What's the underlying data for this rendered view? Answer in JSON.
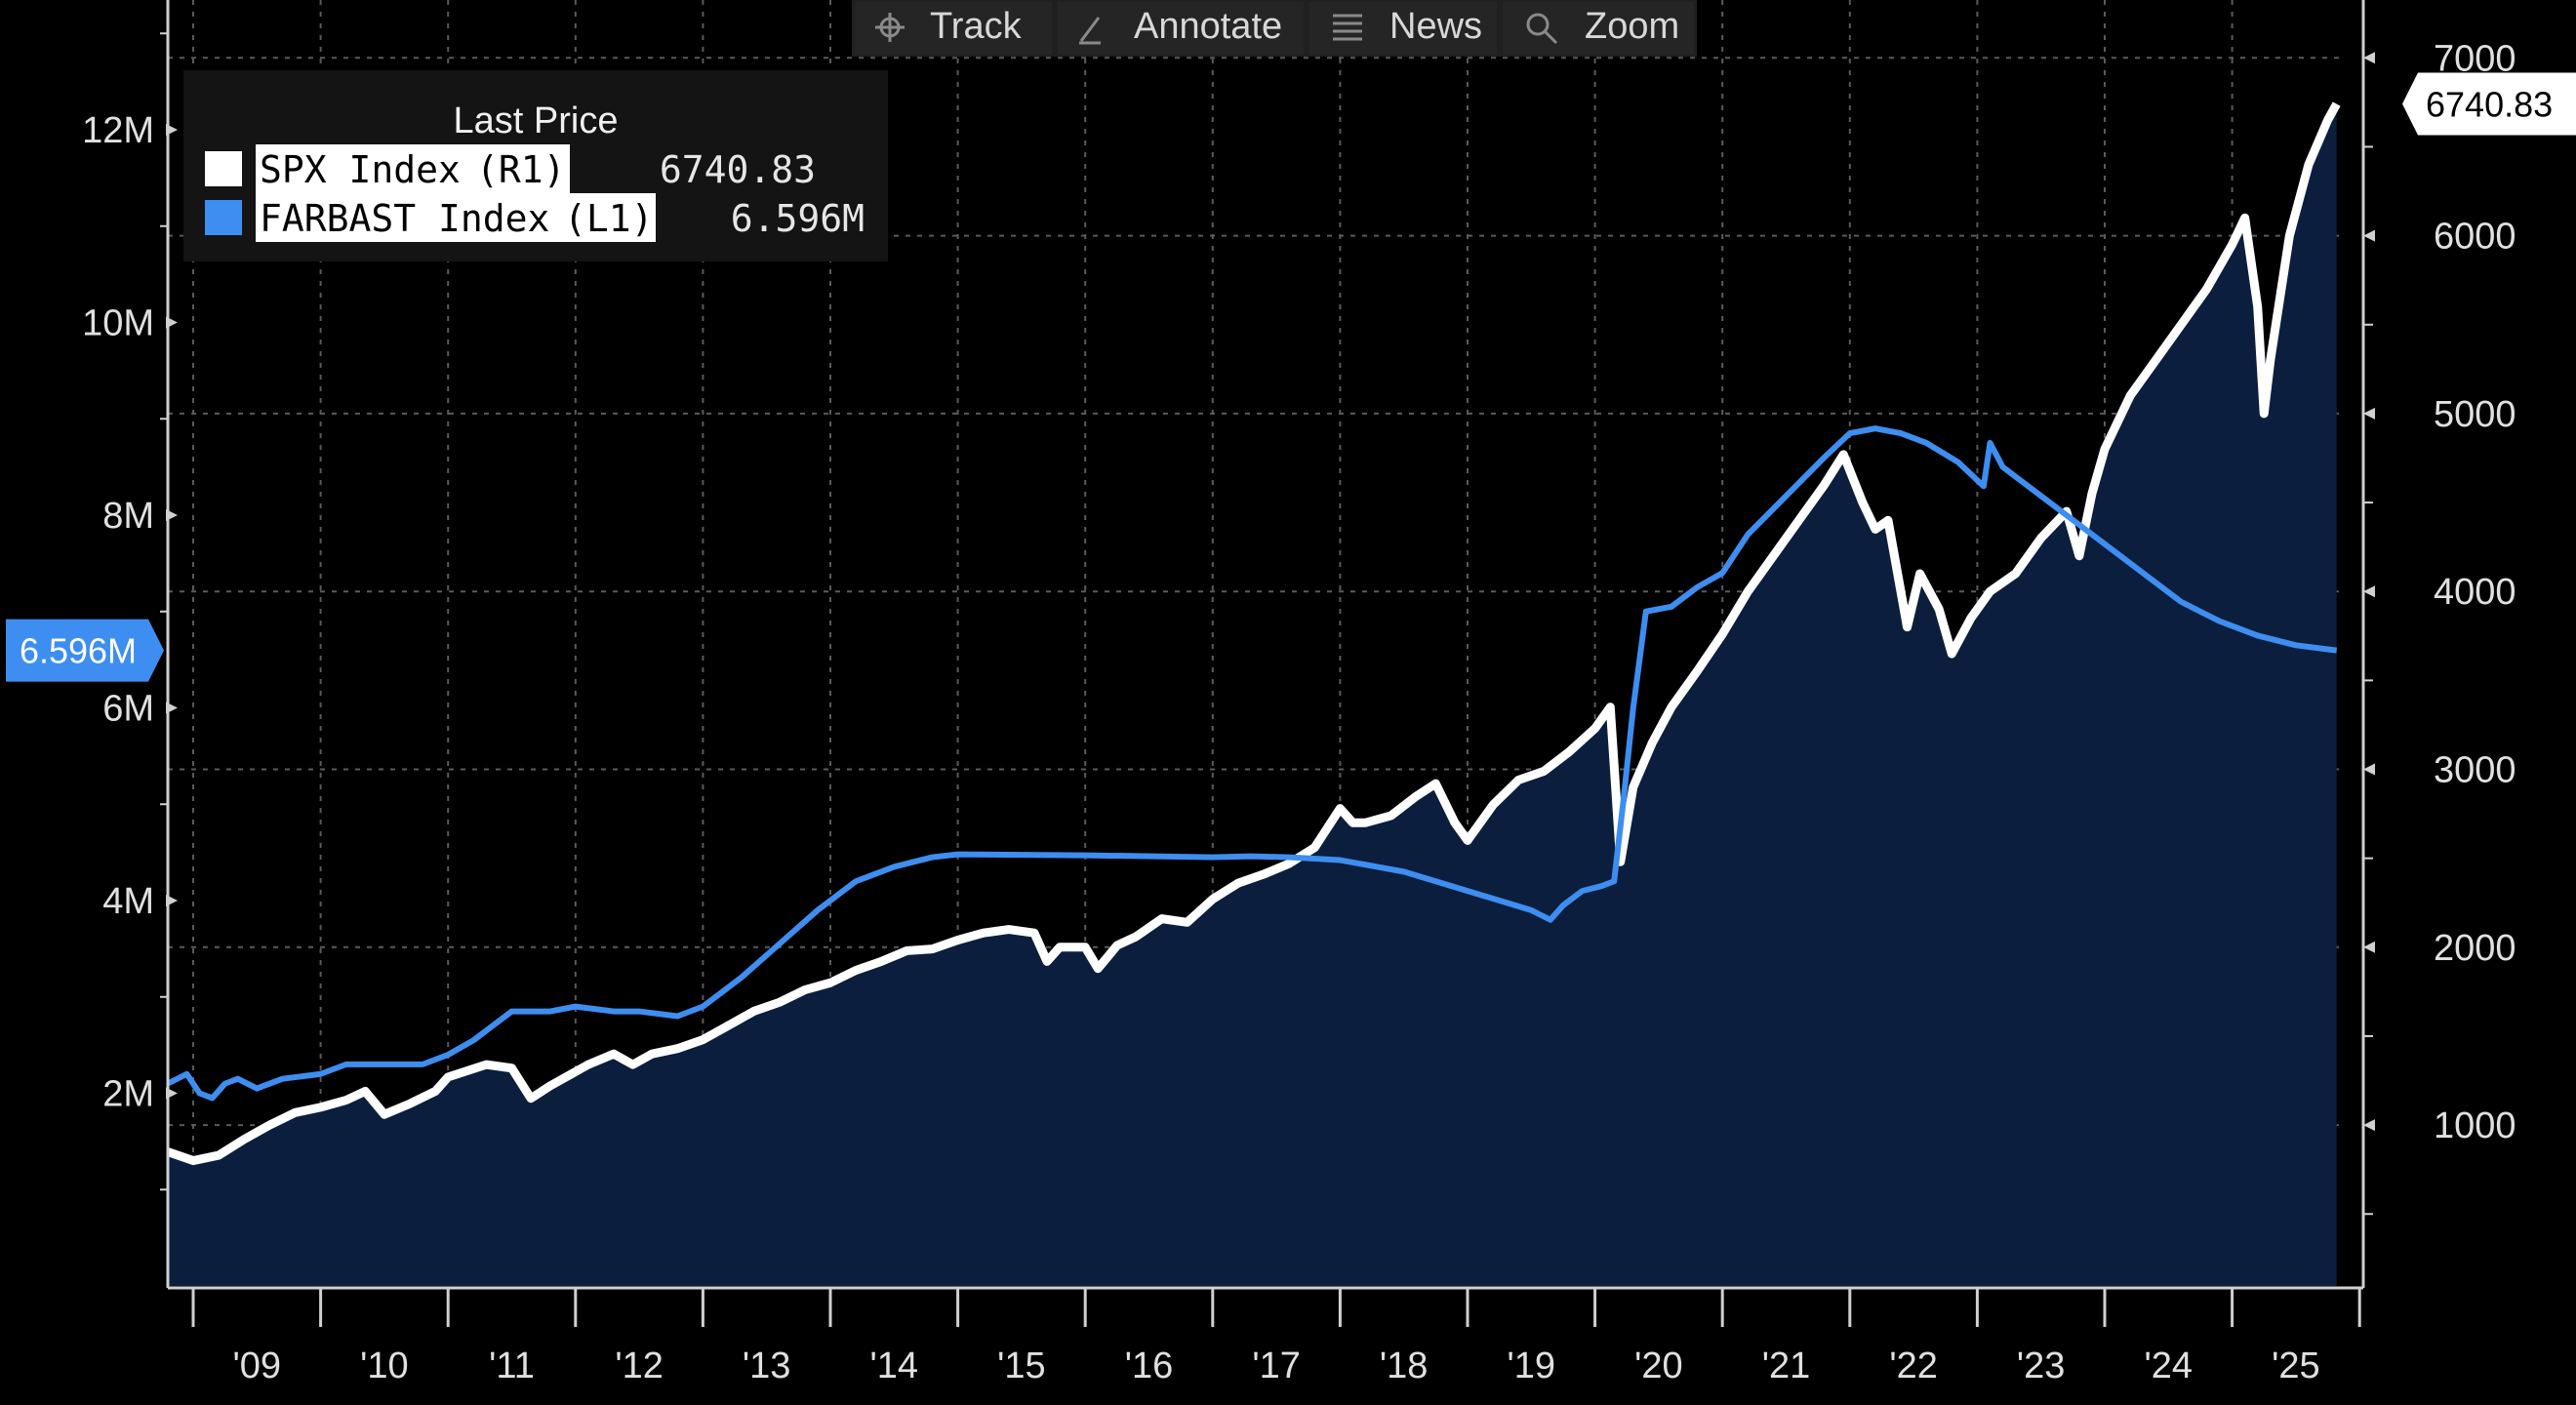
{
  "toolbar": {
    "buttons": [
      {
        "label": "Track",
        "icon": "crosshair-icon"
      },
      {
        "label": "Annotate",
        "icon": "pen-icon"
      },
      {
        "label": "News",
        "icon": "news-icon"
      },
      {
        "label": "Zoom",
        "icon": "magnifier-icon"
      }
    ]
  },
  "legend": {
    "title": "Last Price",
    "items": [
      {
        "name": "SPX Index",
        "axis": "(R1)",
        "value": "6740.83",
        "color": "#ffffff"
      },
      {
        "name": "FARBAST Index",
        "axis": "(L1)",
        "value": "6.596M",
        "color": "#3d8ef0"
      }
    ]
  },
  "chart_data": {
    "type": "line",
    "title": "",
    "x_range": [
      2008.8,
      2025.95
    ],
    "x_tick_labels": [
      "'09",
      "'10",
      "'11",
      "'12",
      "'13",
      "'14",
      "'15",
      "'16",
      "'17",
      "'18",
      "'19",
      "'20",
      "'21",
      "'22",
      "'23",
      "'24",
      "'25"
    ],
    "left_axis": {
      "ylim": [
        0,
        13.2
      ],
      "unit": "M",
      "tick_values": [
        2,
        4,
        6,
        8,
        10,
        12
      ],
      "tick_labels": [
        "2M",
        "4M",
        "6M",
        "8M",
        "10M",
        "12M"
      ],
      "last_value_label": "6.596M",
      "last_value": 6.596
    },
    "right_axis": {
      "ylim": [
        0,
        7000
      ],
      "tick_values": [
        1000,
        2000,
        3000,
        4000,
        5000,
        6000,
        7000
      ],
      "tick_labels": [
        "1000",
        "2000",
        "3000",
        "4000",
        "5000",
        "6000",
        "7000"
      ],
      "last_value_label": "6740.83",
      "last_value": 6740.83
    },
    "grid": true,
    "series": [
      {
        "name": "SPX Index",
        "axis": "right",
        "color": "#ffffff",
        "fill": "#0b1e3d",
        "x": [
          2008.8,
          2009.0,
          2009.2,
          2009.4,
          2009.6,
          2009.8,
          2010.0,
          2010.2,
          2010.35,
          2010.5,
          2010.7,
          2010.9,
          2011.0,
          2011.3,
          2011.5,
          2011.65,
          2011.8,
          2011.95,
          2012.1,
          2012.3,
          2012.45,
          2012.6,
          2012.8,
          2013.0,
          2013.2,
          2013.4,
          2013.6,
          2013.8,
          2014.0,
          2014.2,
          2014.4,
          2014.6,
          2014.8,
          2015.0,
          2015.2,
          2015.4,
          2015.6,
          2015.7,
          2015.8,
          2016.0,
          2016.1,
          2016.25,
          2016.4,
          2016.6,
          2016.8,
          2017.0,
          2017.2,
          2017.4,
          2017.6,
          2017.8,
          2018.0,
          2018.1,
          2018.2,
          2018.4,
          2018.6,
          2018.75,
          2018.9,
          2019.0,
          2019.2,
          2019.4,
          2019.6,
          2019.8,
          2020.0,
          2020.12,
          2020.2,
          2020.3,
          2020.45,
          2020.6,
          2020.8,
          2021.0,
          2021.2,
          2021.4,
          2021.6,
          2021.8,
          2021.95,
          2022.1,
          2022.2,
          2022.3,
          2022.45,
          2022.55,
          2022.7,
          2022.8,
          2022.95,
          2023.1,
          2023.3,
          2023.5,
          2023.7,
          2023.8,
          2023.9,
          2024.0,
          2024.2,
          2024.4,
          2024.6,
          2024.8,
          2025.0,
          2025.1,
          2025.2,
          2025.25,
          2025.3,
          2025.45,
          2025.6,
          2025.75,
          2025.82
        ],
        "values": [
          850,
          800,
          830,
          920,
          1000,
          1070,
          1100,
          1140,
          1190,
          1060,
          1120,
          1190,
          1270,
          1340,
          1320,
          1150,
          1220,
          1280,
          1340,
          1400,
          1340,
          1400,
          1430,
          1480,
          1560,
          1640,
          1690,
          1760,
          1800,
          1870,
          1920,
          1980,
          1990,
          2040,
          2080,
          2100,
          2080,
          1920,
          2000,
          2000,
          1880,
          2010,
          2060,
          2160,
          2140,
          2270,
          2360,
          2410,
          2470,
          2560,
          2780,
          2700,
          2700,
          2740,
          2850,
          2920,
          2700,
          2600,
          2800,
          2940,
          2990,
          3100,
          3230,
          3350,
          2480,
          2900,
          3150,
          3350,
          3550,
          3760,
          4000,
          4200,
          4400,
          4600,
          4770,
          4500,
          4350,
          4400,
          3800,
          4100,
          3900,
          3650,
          3850,
          4000,
          4100,
          4300,
          4450,
          4200,
          4550,
          4800,
          5100,
          5300,
          5500,
          5700,
          5950,
          6100,
          5600,
          5000,
          5300,
          6000,
          6400,
          6650,
          6740.83
        ]
      },
      {
        "name": "FARBAST Index",
        "axis": "left",
        "color": "#3d8ef0",
        "x": [
          2008.8,
          2008.95,
          2009.05,
          2009.15,
          2009.25,
          2009.35,
          2009.5,
          2009.7,
          2010.0,
          2010.2,
          2010.5,
          2010.8,
          2011.0,
          2011.2,
          2011.5,
          2011.8,
          2012.0,
          2012.3,
          2012.5,
          2012.8,
          2013.0,
          2013.3,
          2013.6,
          2013.9,
          2014.2,
          2014.5,
          2014.8,
          2015.0,
          2016.0,
          2017.0,
          2017.3,
          2017.6,
          2018.0,
          2018.5,
          2019.0,
          2019.5,
          2019.65,
          2019.75,
          2019.9,
          2020.05,
          2020.15,
          2020.22,
          2020.3,
          2020.4,
          2020.6,
          2020.8,
          2021.0,
          2021.2,
          2021.5,
          2021.8,
          2022.0,
          2022.2,
          2022.4,
          2022.6,
          2022.85,
          2023.05,
          2023.1,
          2023.2,
          2023.4,
          2023.7,
          2024.0,
          2024.3,
          2024.6,
          2024.9,
          2025.2,
          2025.5,
          2025.82
        ],
        "values": [
          2.1,
          2.2,
          2.0,
          1.95,
          2.1,
          2.15,
          2.05,
          2.15,
          2.2,
          2.3,
          2.3,
          2.3,
          2.4,
          2.55,
          2.85,
          2.85,
          2.9,
          2.85,
          2.85,
          2.8,
          2.9,
          3.2,
          3.55,
          3.9,
          4.2,
          4.35,
          4.45,
          4.48,
          4.47,
          4.45,
          4.46,
          4.45,
          4.42,
          4.3,
          4.1,
          3.9,
          3.8,
          3.95,
          4.1,
          4.15,
          4.2,
          5.0,
          6.0,
          7.0,
          7.05,
          7.25,
          7.4,
          7.8,
          8.2,
          8.6,
          8.85,
          8.9,
          8.85,
          8.75,
          8.55,
          8.3,
          8.75,
          8.5,
          8.3,
          8.0,
          7.7,
          7.4,
          7.1,
          6.9,
          6.75,
          6.65,
          6.596
        ]
      }
    ]
  }
}
